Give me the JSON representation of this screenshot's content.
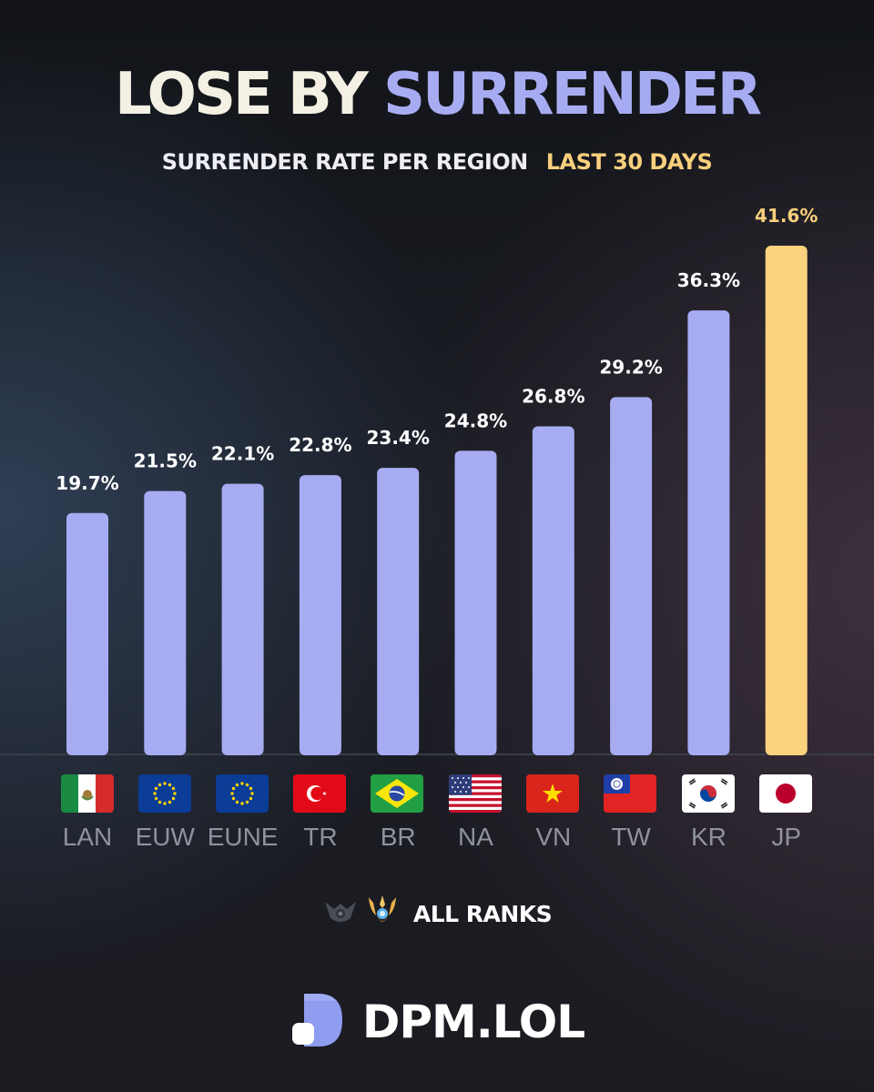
{
  "header": {
    "title_part1": "LOSE BY",
    "title_part2": "SURRENDER",
    "subtitle_part1": "SURRENDER RATE PER REGION",
    "subtitle_part2": "LAST 30 DAYS"
  },
  "colors": {
    "bar": "#a7acf2",
    "bar_highlight": "#fcd27f",
    "value_label": "#ffffff",
    "value_label_highlight": "#f8cf7c",
    "region_label": "#8f929c",
    "title_accent": "#a7acf2"
  },
  "chart_data": {
    "type": "bar",
    "title": "",
    "xlabel": "",
    "ylabel": "",
    "ylim": [
      0,
      41.6
    ],
    "categories": [
      "LAN",
      "EUW",
      "EUNE",
      "TR",
      "BR",
      "NA",
      "VN",
      "TW",
      "KR",
      "JP"
    ],
    "values": [
      19.7,
      21.5,
      22.1,
      22.8,
      23.4,
      24.8,
      26.8,
      29.2,
      36.3,
      41.6
    ],
    "value_labels": [
      "19.7%",
      "21.5%",
      "22.1%",
      "22.8%",
      "23.4%",
      "24.8%",
      "26.8%",
      "29.2%",
      "36.3%",
      "41.6%"
    ],
    "highlight_category": "JP",
    "category_icons": [
      "mexico-flag-icon",
      "eu-flag-icon",
      "eu-flag-icon",
      "turkey-flag-icon",
      "brazil-flag-icon",
      "usa-flag-icon",
      "vietnam-flag-icon",
      "taiwan-flag-icon",
      "south-korea-flag-icon",
      "japan-flag-icon"
    ],
    "grid": false,
    "legend": "none"
  },
  "filter": {
    "label": "ALL RANKS",
    "icons": [
      "iron-rank-emblem-icon",
      "challenger-rank-emblem-icon"
    ]
  },
  "brand": {
    "name": "DPM.LOL",
    "logo_icon": "dpm-logo-icon"
  }
}
